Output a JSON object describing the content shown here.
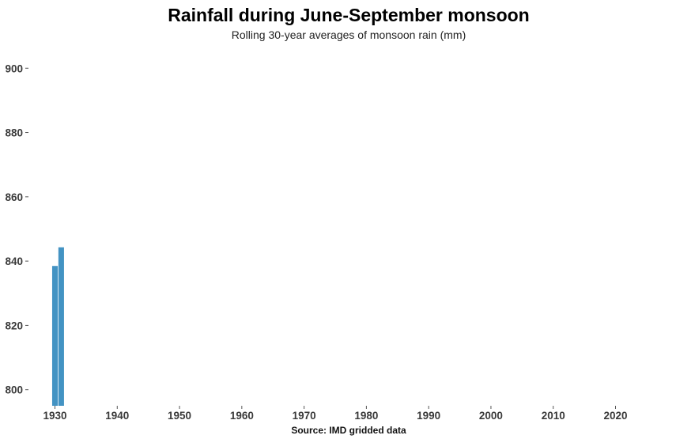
{
  "chart_data": {
    "type": "bar",
    "title": "Rainfall during June-September monsoon",
    "subtitle": "Rolling 30-year averages of monsoon rain (mm)",
    "caption": "Source: IMD gridded data",
    "xlabel": "",
    "ylabel": "",
    "x": [
      1930,
      1931
    ],
    "values": [
      838.5,
      844.3
    ],
    "xlim": [
      1926,
      2024
    ],
    "ylim": [
      795,
      904
    ],
    "x_ticks": [
      1930,
      1940,
      1950,
      1960,
      1970,
      1980,
      1990,
      2000,
      2010,
      2020
    ],
    "y_ticks": [
      800,
      820,
      840,
      860,
      880,
      900
    ],
    "grid": false,
    "bar_color": "#4393c3"
  }
}
